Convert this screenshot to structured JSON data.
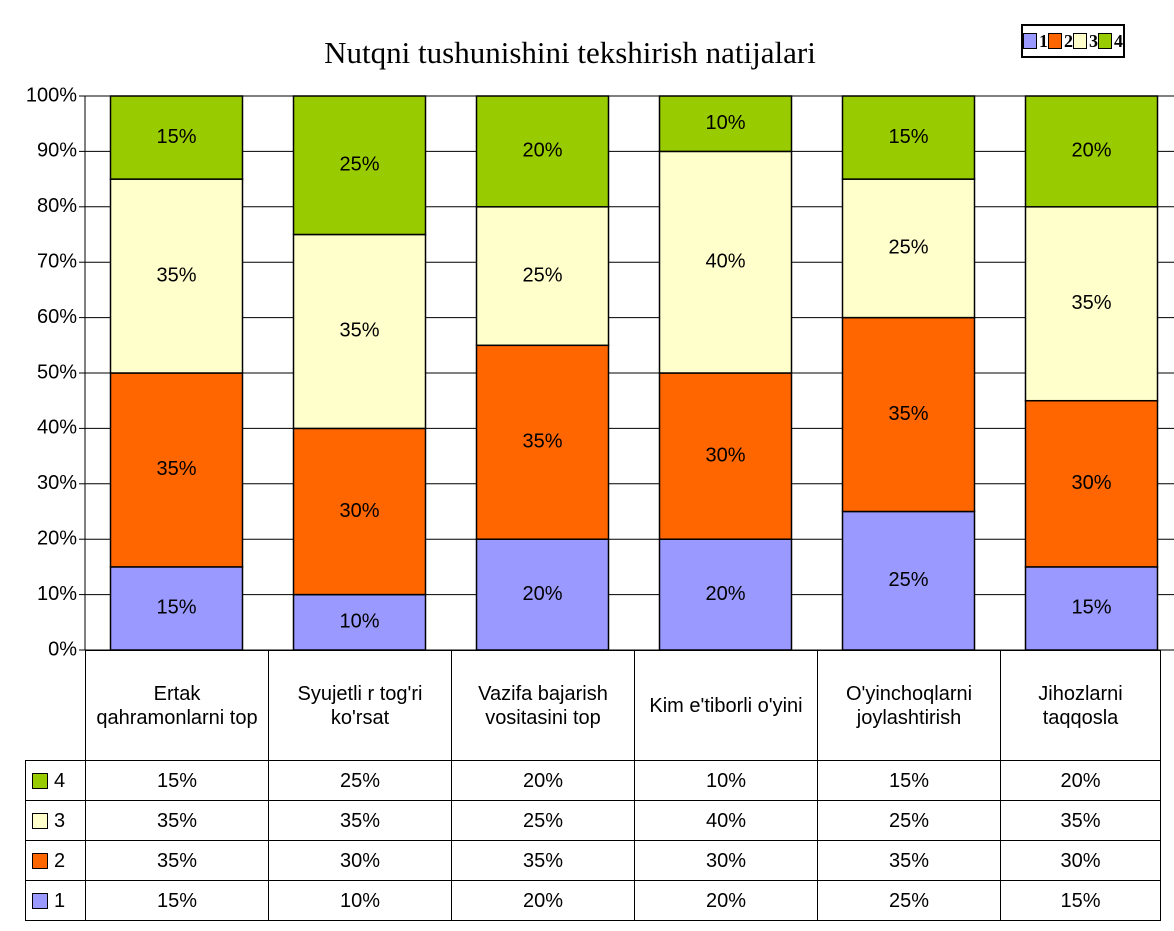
{
  "chart_data": {
    "type": "stacked_bar",
    "title": "Nutqni tushunishini tekshirish natijalari",
    "categories": [
      "Ertak qahramonlarni top",
      "Syujetli r tog'ri ko'rsat",
      "Vazifa bajarish vositasini top",
      "Kim e'tiborli o'yini",
      "O'yinchoqlarni joylashtirish",
      "Jihozlarni taqqosla"
    ],
    "series": [
      {
        "name": "1",
        "color": "#9999ff",
        "values": [
          15,
          10,
          20,
          20,
          25,
          15
        ],
        "value_labels": [
          "15%",
          "10%",
          "20%",
          "20%",
          "25%",
          "15%"
        ]
      },
      {
        "name": "2",
        "color": "#ff6600",
        "values": [
          35,
          30,
          35,
          30,
          35,
          30
        ],
        "value_labels": [
          "35%",
          "30%",
          "35%",
          "30%",
          "35%",
          "30%"
        ]
      },
      {
        "name": "3",
        "color": "#ffffcc",
        "values": [
          35,
          35,
          25,
          40,
          25,
          35
        ],
        "value_labels": [
          "35%",
          "35%",
          "25%",
          "40%",
          "25%",
          "35%"
        ]
      },
      {
        "name": "4",
        "color": "#99cc00",
        "values": [
          15,
          25,
          20,
          10,
          15,
          20
        ],
        "value_labels": [
          "15%",
          "25%",
          "20%",
          "10%",
          "15%",
          "20%"
        ]
      }
    ],
    "ylim": [
      0,
      100
    ],
    "yticks": [
      {
        "value": 0,
        "label": "0%"
      },
      {
        "value": 10,
        "label": "10%"
      },
      {
        "value": 20,
        "label": "20%"
      },
      {
        "value": 30,
        "label": "30%"
      },
      {
        "value": 40,
        "label": "40%"
      },
      {
        "value": 50,
        "label": "50%"
      },
      {
        "value": 60,
        "label": "60%"
      },
      {
        "value": 70,
        "label": "70%"
      },
      {
        "value": 80,
        "label": "80%"
      },
      {
        "value": 90,
        "label": "90%"
      },
      {
        "value": 100,
        "label": "100%"
      }
    ],
    "grid": true,
    "legend": "top-right",
    "data_table": true
  }
}
